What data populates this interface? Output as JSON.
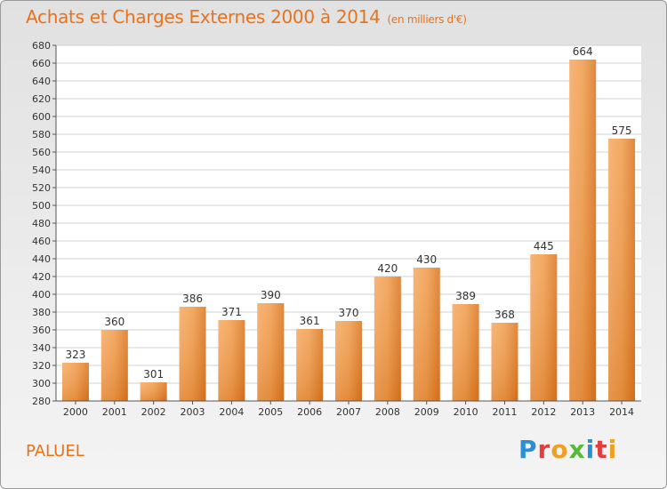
{
  "chart_data": {
    "type": "bar",
    "title": "Achats et Charges Externes 2000 à 2014",
    "subtitle": "(en milliers d'€)",
    "location": "PALUEL",
    "categories": [
      "2000",
      "2001",
      "2002",
      "2003",
      "2004",
      "2005",
      "2006",
      "2007",
      "2008",
      "2009",
      "2010",
      "2011",
      "2012",
      "2013",
      "2014"
    ],
    "values": [
      323,
      360,
      301,
      386,
      371,
      390,
      361,
      370,
      420,
      430,
      389,
      368,
      445,
      664,
      575
    ],
    "ylim": [
      280,
      680
    ],
    "ytick_step": 20,
    "grid": true,
    "bar_color": "#e8852c"
  },
  "logo": {
    "text": "Proxiti"
  }
}
